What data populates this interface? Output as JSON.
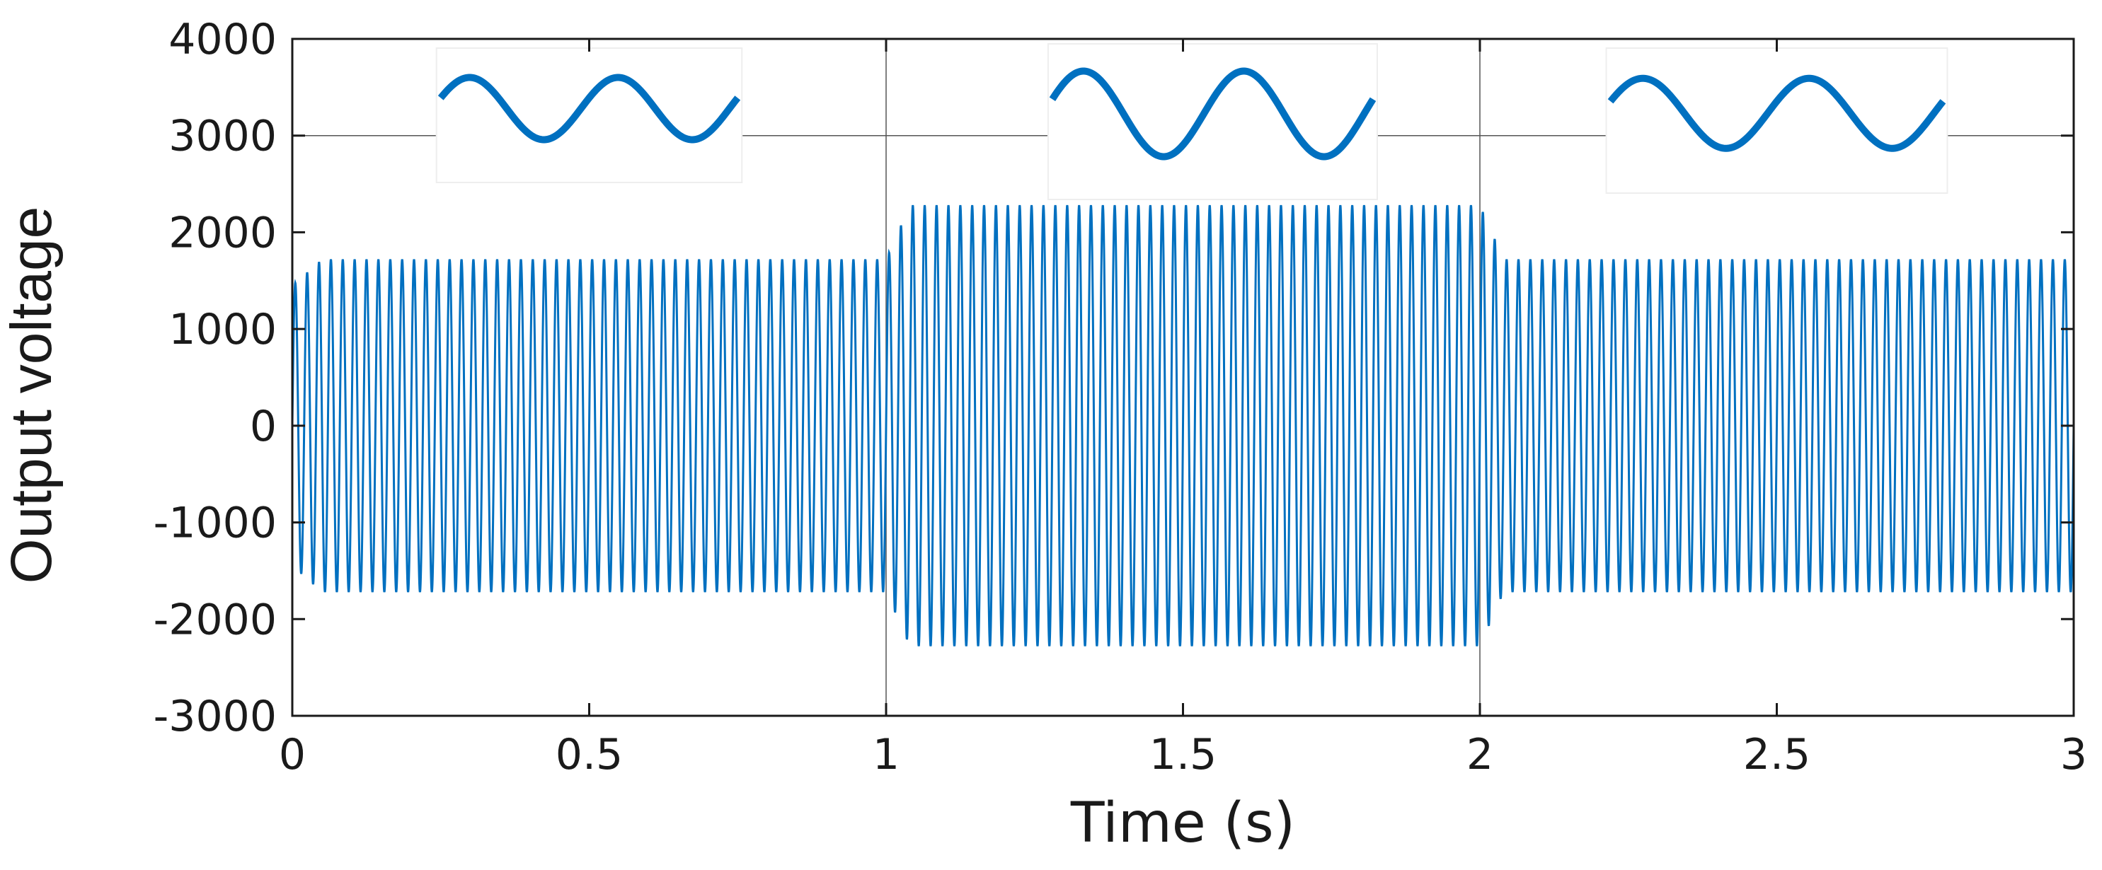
{
  "chart_data": {
    "type": "line",
    "title": "",
    "xlabel": "Time (s)",
    "ylabel": "Output voltage",
    "xlim": [
      0,
      3
    ],
    "ylim": [
      -3000,
      4000
    ],
    "xticks": [
      "0",
      "0.5",
      "1",
      "1.5",
      "2",
      "2.5",
      "3"
    ],
    "yticks": [
      "-3000",
      "-2000",
      "-1000",
      "0",
      "1000",
      "2000",
      "3000",
      "4000"
    ],
    "grid": "partial: y=3000 line, x=1 and x=2 lines",
    "legend": "none",
    "series": [
      {
        "color": "#0070C0",
        "waveform": "sinusoid",
        "segments": [
          {
            "t_start": 0,
            "t_end": 1,
            "amplitude": 1720
          },
          {
            "t_start": 1,
            "t_end": 2,
            "amplitude": 2280
          },
          {
            "t_start": 2,
            "t_end": 3,
            "amplitude": 1720
          }
        ],
        "startup_amplitude": 1450
      }
    ],
    "insets": [
      {
        "description": "zoomed waveform",
        "x_range": [
          0.25,
          0.75
        ],
        "cycles": 2
      },
      {
        "description": "zoomed waveform",
        "x_range": [
          1.28,
          1.82
        ],
        "cycles": 2
      },
      {
        "description": "zoomed waveform",
        "x_range": [
          2.22,
          2.78
        ],
        "cycles": 2
      }
    ]
  },
  "colors": {
    "series": "#0070C0",
    "axes": "#1a1a1a",
    "grid": "#555555"
  }
}
